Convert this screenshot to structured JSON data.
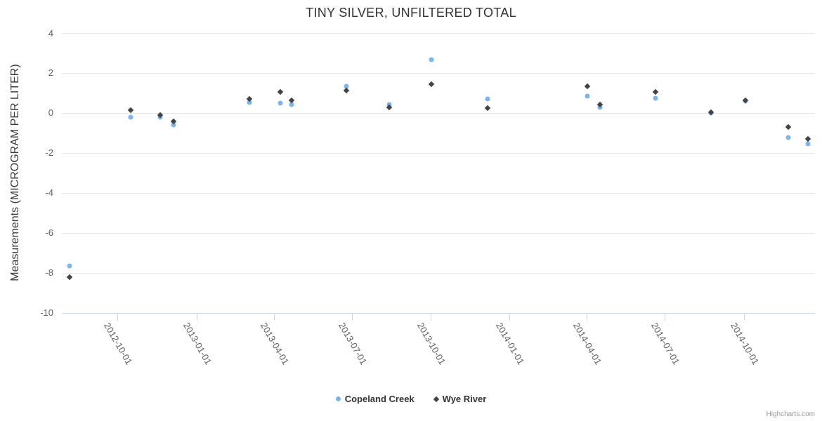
{
  "title": "TINY SILVER, UNFILTERED TOTAL",
  "credits_label": "Highcharts.com",
  "chart_data": {
    "type": "scatter",
    "title": "TINY SILVER, UNFILTERED TOTAL",
    "xlabel": "",
    "ylabel": "Measurements (MICROGRAM PER LITER)",
    "grid": "horizontal-on",
    "legend_position": "bottom-center",
    "ylim": [
      -10,
      4
    ],
    "y_ticks": [
      4,
      2,
      0,
      -2,
      -4,
      -6,
      -8,
      -10
    ],
    "xlim": [
      "2012-07-28",
      "2014-12-23"
    ],
    "x_ticks": [
      "2012-10-01",
      "2013-01-01",
      "2013-04-01",
      "2013-07-01",
      "2013-10-01",
      "2014-01-01",
      "2014-04-01",
      "2014-07-01",
      "2014-10-01"
    ],
    "x": [
      "2012-08-06",
      "2012-10-16",
      "2012-11-20",
      "2012-12-05",
      "2013-03-04",
      "2013-04-09",
      "2013-04-22",
      "2013-06-25",
      "2013-08-14",
      "2013-10-02",
      "2013-12-06",
      "2014-04-02",
      "2014-04-16",
      "2014-06-20",
      "2014-08-24",
      "2014-10-03",
      "2014-11-22",
      "2014-12-15"
    ],
    "series": [
      {
        "name": "Copeland Creek",
        "marker": "circle",
        "color": "#7cb5ec",
        "values": [
          -7.65,
          -0.2,
          -0.2,
          -0.6,
          0.55,
          0.5,
          0.45,
          1.35,
          0.45,
          2.7,
          0.7,
          0.85,
          0.3,
          0.75,
          0.0,
          0.6,
          -1.2,
          -1.55
        ]
      },
      {
        "name": "Wye River",
        "marker": "diamond",
        "color": "#434348",
        "values": [
          -8.2,
          0.15,
          -0.1,
          -0.4,
          0.7,
          1.05,
          0.65,
          1.15,
          0.3,
          1.45,
          0.25,
          1.35,
          0.45,
          1.05,
          0.05,
          0.65,
          -0.7,
          -1.3
        ]
      }
    ],
    "axis_colors": {
      "grid": "#e6e6e6",
      "axis_line": "#ccd6eb",
      "labels": "#606060"
    }
  }
}
